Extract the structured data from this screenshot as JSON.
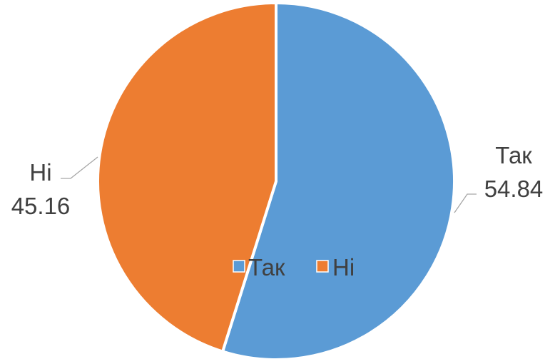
{
  "chart_data": {
    "type": "pie",
    "title": "",
    "categories": [
      "Так",
      "Ні"
    ],
    "values": [
      54.84,
      45.16
    ],
    "colors": [
      "#5B9BD5",
      "#ED7D31"
    ],
    "legend": {
      "placement": "center",
      "items": [
        "Так",
        "Ні"
      ]
    },
    "labels": [
      {
        "name": "Так",
        "value": "54.84"
      },
      {
        "name": "Ні",
        "value": "45.16"
      }
    ]
  }
}
